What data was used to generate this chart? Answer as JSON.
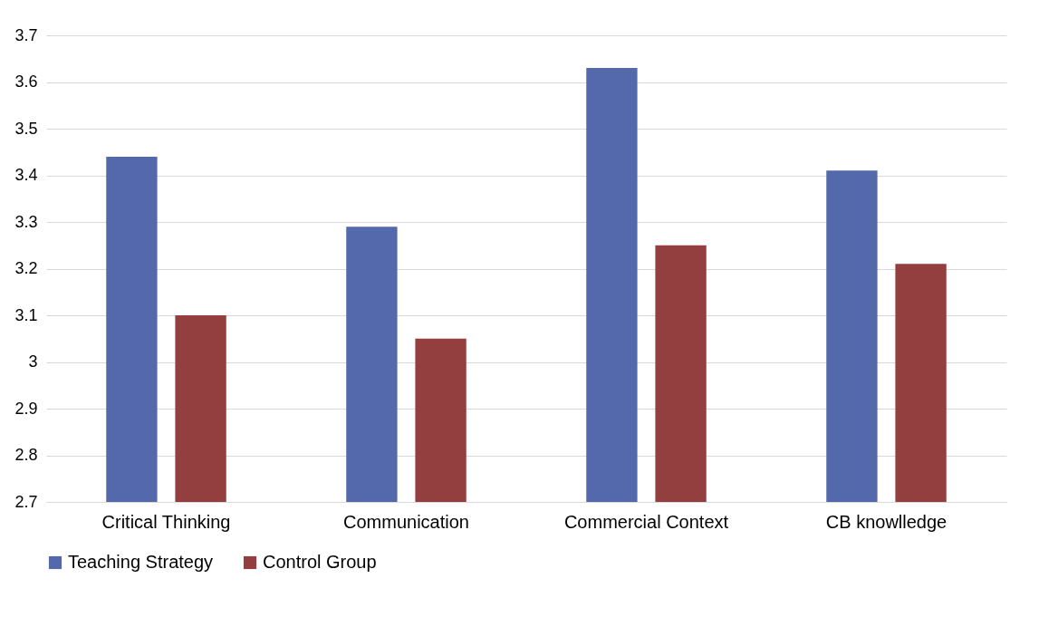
{
  "chart_data": {
    "type": "bar",
    "categories": [
      "Critical Thinking",
      "Communication",
      "Commercial Context",
      "CB knowlledge"
    ],
    "series": [
      {
        "name": "Teaching Strategy",
        "color": "#5469ac",
        "values": [
          3.44,
          3.29,
          3.63,
          3.41
        ]
      },
      {
        "name": "Control Group",
        "color": "#943f3f",
        "values": [
          3.1,
          3.05,
          3.25,
          3.21
        ]
      }
    ],
    "ylim": [
      2.7,
      3.7
    ],
    "yticks": [
      2.7,
      2.8,
      2.9,
      3,
      3.1,
      3.2,
      3.3,
      3.4,
      3.5,
      3.6,
      3.7
    ],
    "grid": "y",
    "legend": "bottom"
  }
}
